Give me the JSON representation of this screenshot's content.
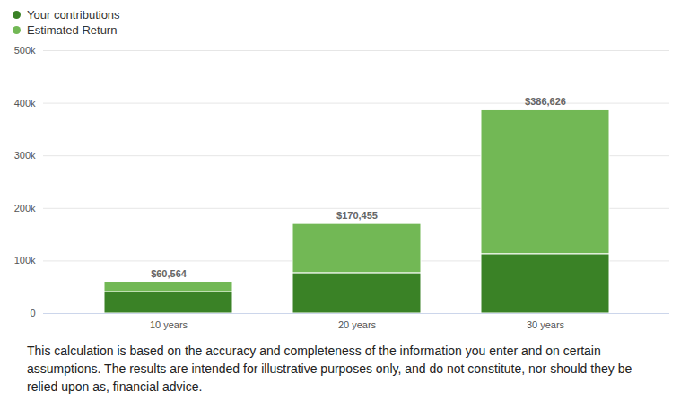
{
  "chart_data": {
    "type": "bar",
    "stacked": true,
    "categories": [
      "10 years",
      "20 years",
      "30 years"
    ],
    "series": [
      {
        "name": "Your contributions",
        "color": "#3a8226",
        "values": [
          41000,
          77000,
          113000
        ]
      },
      {
        "name": "Estimated Return",
        "color": "#72b855",
        "values": [
          19564,
          93455,
          273626
        ]
      }
    ],
    "totals": [
      60564,
      170455,
      386626
    ],
    "total_labels": [
      "$60,564",
      "$170,455",
      "$386,626"
    ],
    "ylim": [
      0,
      500000
    ],
    "yticks": [
      0,
      {
        "value": 100000,
        "label": "100k"
      },
      {
        "value": 200000,
        "label": "200k"
      },
      {
        "value": 300000,
        "label": "300k"
      },
      {
        "value": 400000,
        "label": "400k"
      },
      {
        "value": 500000,
        "label": "500k"
      }
    ],
    "grid": true,
    "legend": "top-left",
    "caption": "This calculation is based on the accuracy and completeness of the information you enter and on certain assumptions. The results are intended for illustrative purposes only, and do not constitute, nor should they be relied upon as, financial advice."
  }
}
